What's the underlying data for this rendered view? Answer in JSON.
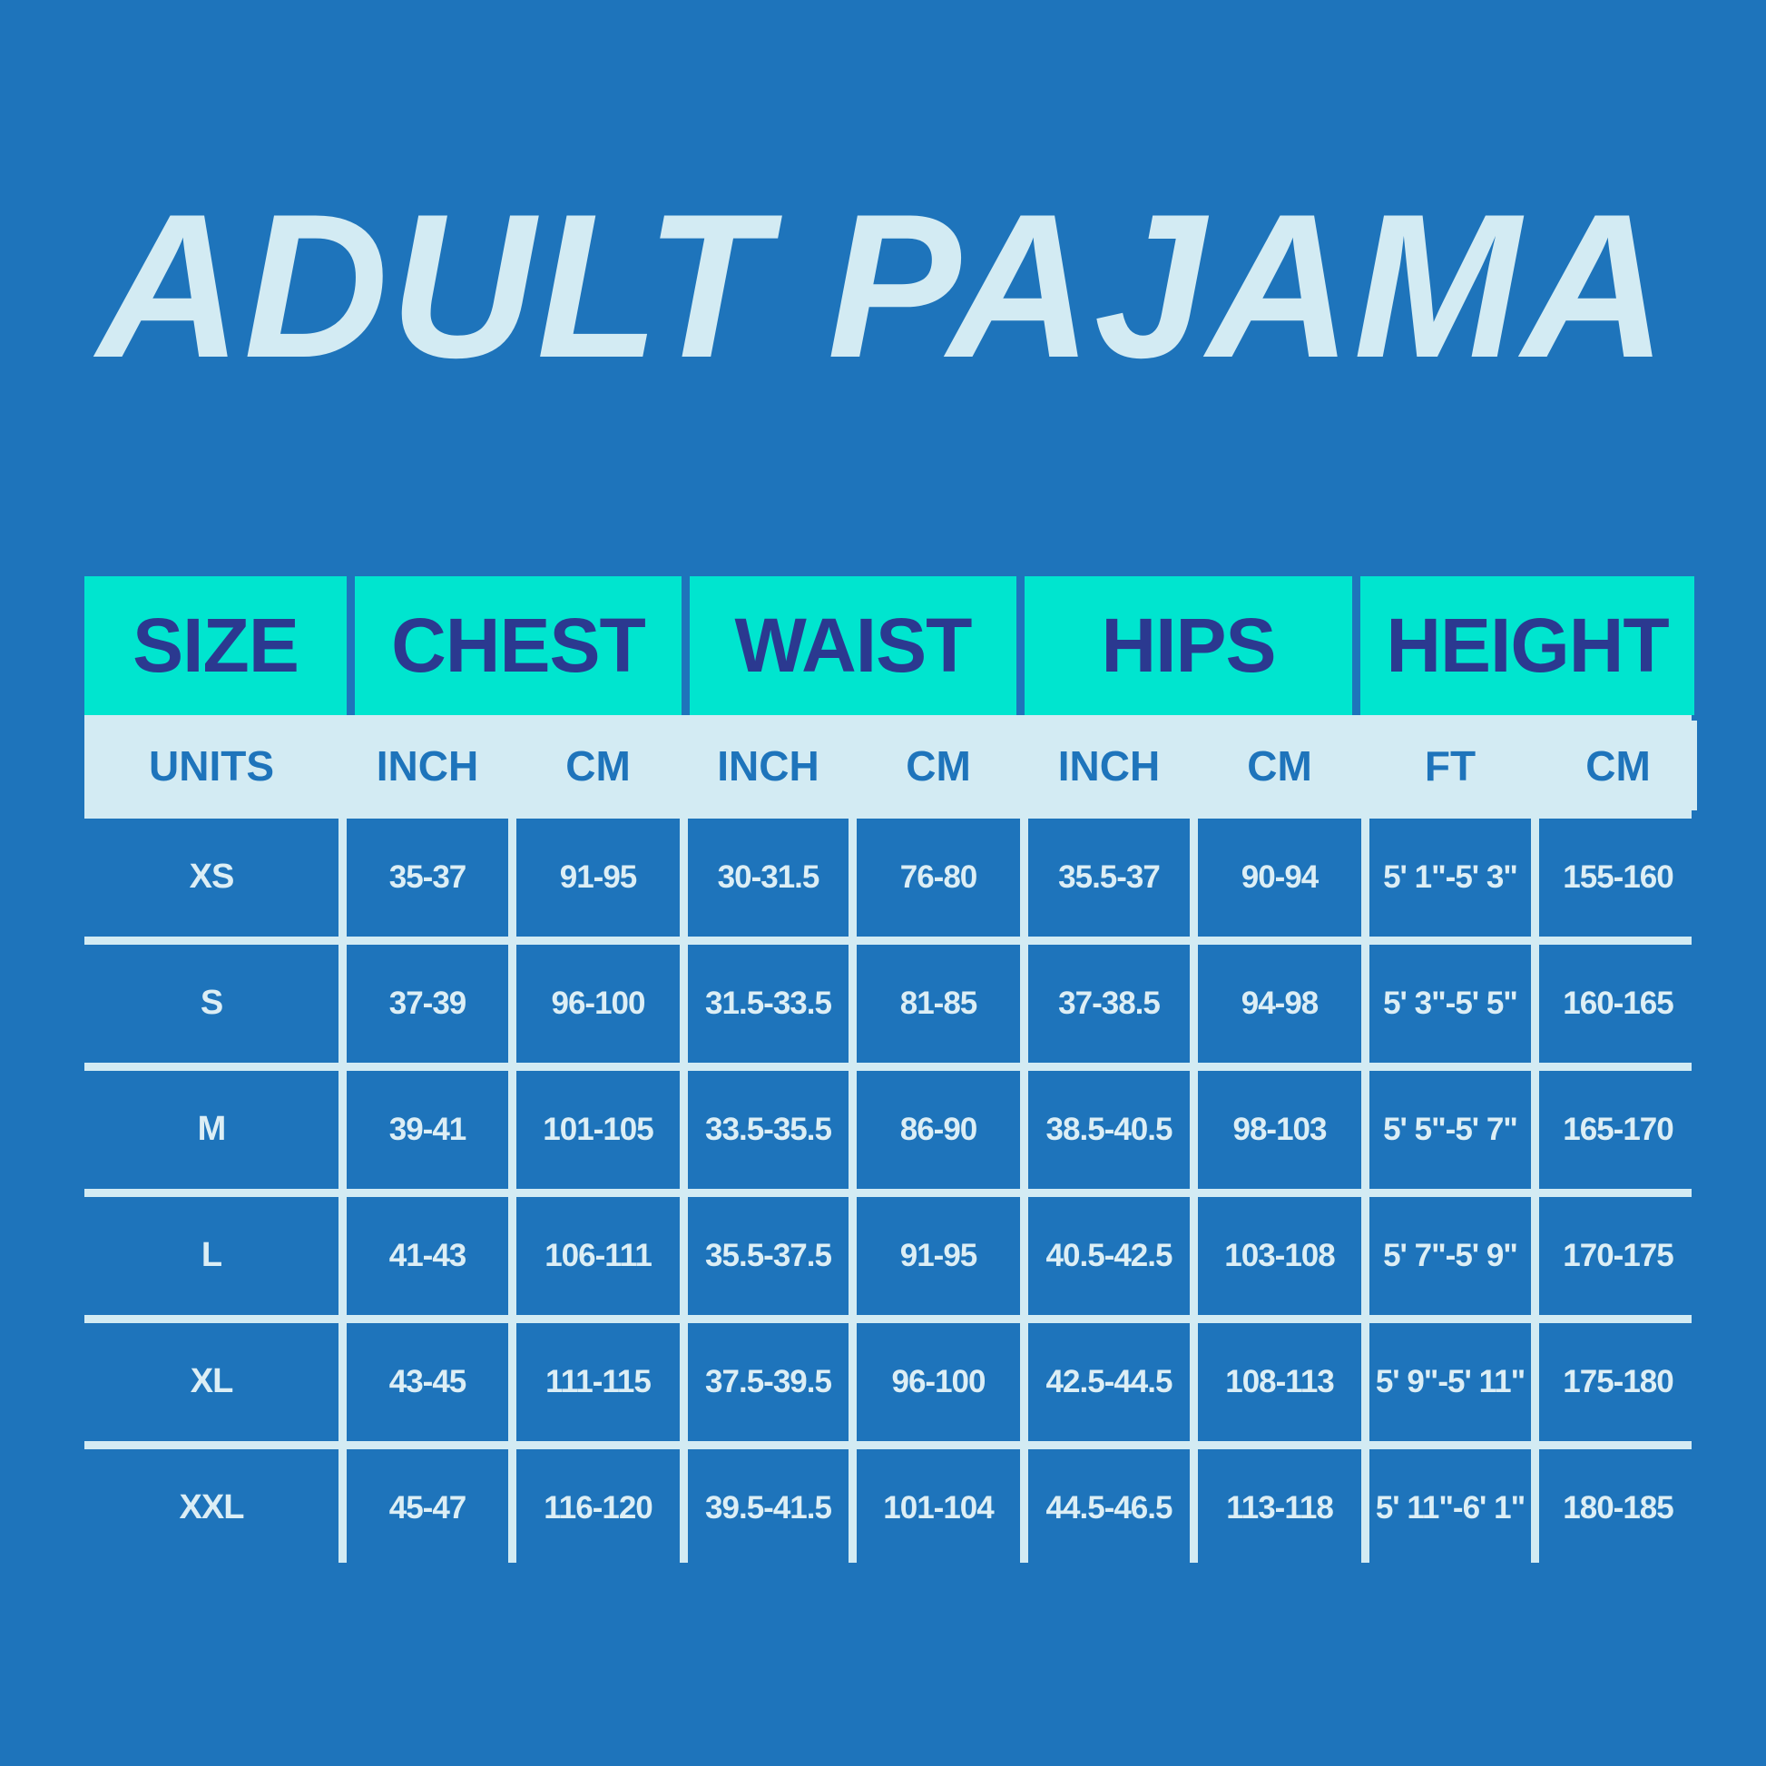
{
  "title": "ADULT PAJAMA",
  "colors": {
    "background": "#1e74bb",
    "header": "#00e5cf",
    "header_text": "#2b3990",
    "light": "#d3ebf3"
  },
  "headers": [
    "SIZE",
    "CHEST",
    "WAIST",
    "HIPS",
    "HEIGHT"
  ],
  "units": [
    "UNITS",
    "INCH",
    "CM",
    "INCH",
    "CM",
    "INCH",
    "CM",
    "FT",
    "CM"
  ],
  "rows": [
    [
      "XS",
      "35-37",
      "91-95",
      "30-31.5",
      "76-80",
      "35.5-37",
      "90-94",
      "5' 1\"-5' 3\"",
      "155-160"
    ],
    [
      "S",
      "37-39",
      "96-100",
      "31.5-33.5",
      "81-85",
      "37-38.5",
      "94-98",
      "5' 3\"-5' 5\"",
      "160-165"
    ],
    [
      "M",
      "39-41",
      "101-105",
      "33.5-35.5",
      "86-90",
      "38.5-40.5",
      "98-103",
      "5' 5\"-5' 7\"",
      "165-170"
    ],
    [
      "L",
      "41-43",
      "106-111",
      "35.5-37.5",
      "91-95",
      "40.5-42.5",
      "103-108",
      "5' 7\"-5' 9\"",
      "170-175"
    ],
    [
      "XL",
      "43-45",
      "111-115",
      "37.5-39.5",
      "96-100",
      "42.5-44.5",
      "108-113",
      "5' 9\"-5' 11\"",
      "175-180"
    ],
    [
      "XXL",
      "45-47",
      "116-120",
      "39.5-41.5",
      "101-104",
      "44.5-46.5",
      "113-118",
      "5' 11\"-6' 1\"",
      "180-185"
    ]
  ]
}
